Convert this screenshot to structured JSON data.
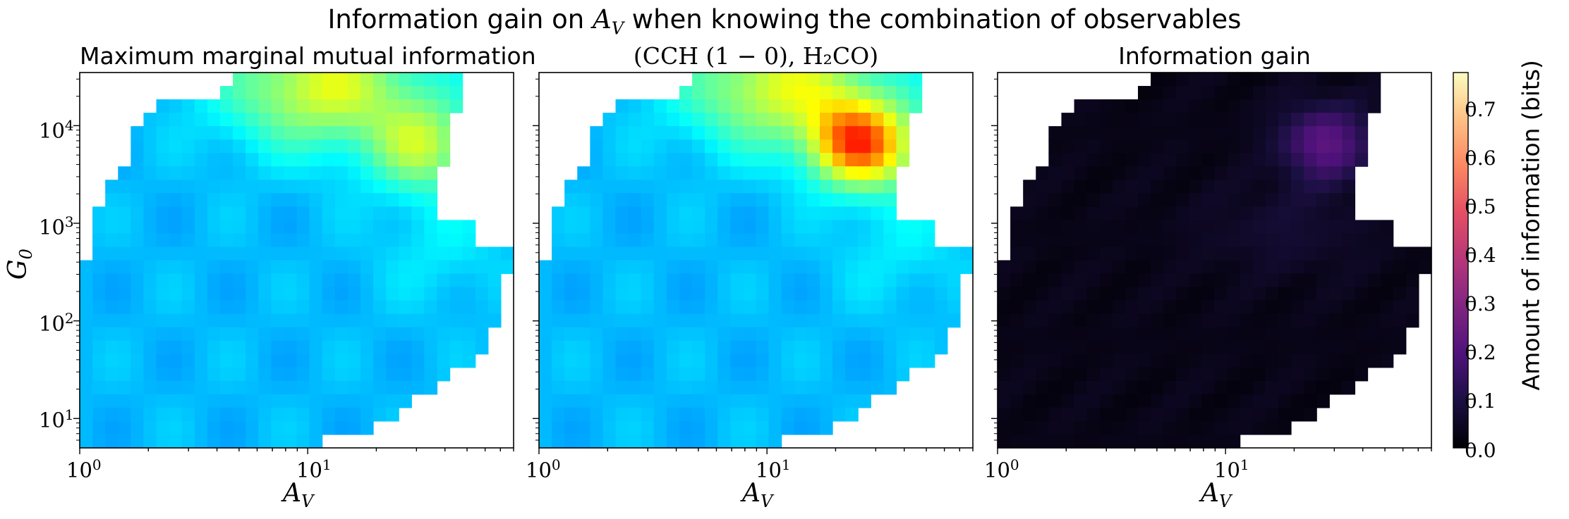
{
  "chart_data": {
    "suptitle_prefix": "Information gain on ",
    "suptitle_math": "A_V",
    "suptitle_suffix": " when knowing the combination of observables",
    "type": "heatmap",
    "panels": [
      {
        "title": "Maximum marginal mutual information",
        "colormap": "jet",
        "colorbar": false,
        "xlabel": "A_V",
        "ylabel": "G_0",
        "xscale": "log",
        "yscale": "log",
        "xlim": [
          1,
          80
        ],
        "ylim": [
          5,
          35000
        ],
        "xticks": [
          "10^0",
          "10^1"
        ],
        "yticks": [
          "10^1",
          "10^2",
          "10^3",
          "10^4"
        ],
        "value_range": [
          0,
          0.77
        ],
        "peak_value": 0.45,
        "peak_location": {
          "A_V": 10,
          "G_0": 25000
        }
      },
      {
        "title": "(CCH (1 − 0), H₂CO)",
        "colormap": "jet",
        "colorbar": false,
        "xlabel": "A_V",
        "xscale": "log",
        "yscale": "log",
        "xlim": [
          1,
          80
        ],
        "ylim": [
          5,
          35000
        ],
        "xticks": [
          "10^0",
          "10^1"
        ],
        "value_range": [
          0,
          0.77
        ],
        "peak_value": 0.6,
        "peak_location": {
          "A_V": 25,
          "G_0": 10000
        }
      },
      {
        "title": "Information gain",
        "colormap": "magma",
        "colorbar": true,
        "xlabel": "A_V",
        "xscale": "log",
        "yscale": "log",
        "xlim": [
          1,
          80
        ],
        "ylim": [
          5,
          35000
        ],
        "xticks": [
          "10^0",
          "10^1"
        ],
        "value_range": [
          0,
          0.77
        ],
        "peak_value": 0.22,
        "peak_location": {
          "A_V": 30,
          "G_0": 10000
        }
      }
    ],
    "colorbar": {
      "label": "Amount of information (bits)",
      "ticks": [
        "0.0",
        "0.1",
        "0.2",
        "0.3",
        "0.4",
        "0.5",
        "0.6",
        "0.7"
      ],
      "range": [
        0,
        0.77
      ],
      "colormap": "magma"
    }
  }
}
